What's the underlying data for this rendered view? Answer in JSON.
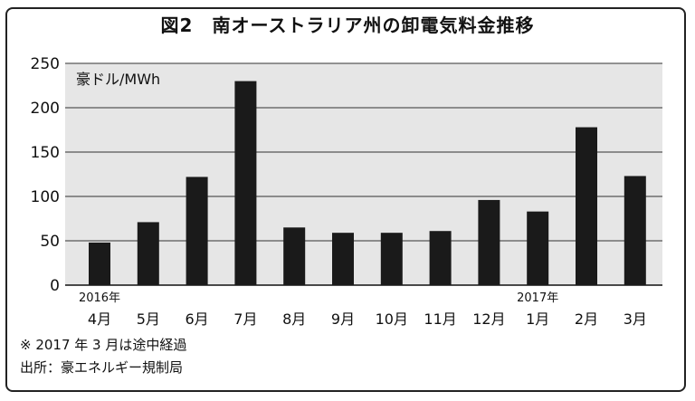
{
  "title": "図2　南オーストラリア州の卸電気料金推移",
  "note": "※ 2017 年 3 月は途中経過",
  "source": "出所：豪エネルギー規制局",
  "chart_data": {
    "type": "bar",
    "unit_label": "豪ドル/MWh",
    "categories": [
      "4月",
      "5月",
      "6月",
      "7月",
      "8月",
      "9月",
      "10月",
      "11月",
      "12月",
      "1月",
      "2月",
      "3月"
    ],
    "year_labels": [
      {
        "category_index": 0,
        "label": "2016年"
      },
      {
        "category_index": 9,
        "label": "2017年"
      }
    ],
    "values": [
      48,
      71,
      122,
      230,
      65,
      59,
      59,
      61,
      96,
      83,
      178,
      123
    ],
    "yticks": [
      0,
      50,
      100,
      150,
      200,
      250
    ],
    "ylim": [
      0,
      250
    ],
    "grid": true,
    "background": "#e6e6e6",
    "bar_color": "#1a1a1a"
  }
}
